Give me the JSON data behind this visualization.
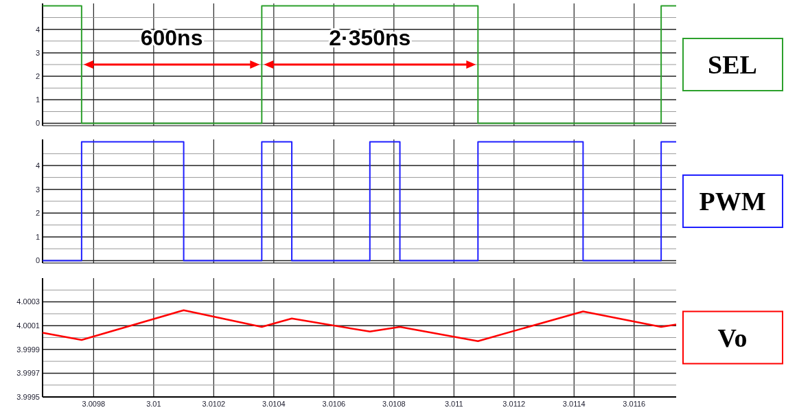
{
  "chart_data": [
    {
      "type": "step",
      "xlim": [
        3.00963,
        3.01174
      ],
      "xticks": [
        3.0098,
        3.01,
        3.0102,
        3.0104,
        3.0106,
        3.0108,
        3.011,
        3.0112,
        3.0114,
        3.0116
      ],
      "ylim": [
        -0.1,
        5.1
      ],
      "yticks": [
        0,
        {
          "value": 0.5,
          "label": null
        },
        1,
        {
          "value": 1.5,
          "label": null
        },
        2,
        {
          "value": 2.5,
          "label": null
        },
        3,
        {
          "value": 3.5,
          "label": null
        },
        4,
        {
          "value": 4.5,
          "label": null
        }
      ],
      "tick_labels": "y",
      "grid": true,
      "legend": "right",
      "series": [
        {
          "name": "SEL",
          "color": "#2ca02c",
          "x": [
            3.00963,
            3.00976,
            3.01036,
            3.01108,
            3.01169,
            3.01174
          ],
          "values": [
            5,
            0,
            5,
            0,
            5,
            5
          ]
        }
      ],
      "annotations": [
        "600ns",
        "2·350ns"
      ]
    },
    {
      "type": "step",
      "xlim": [
        3.00963,
        3.01174
      ],
      "xticks": [
        3.0098,
        3.01,
        3.0102,
        3.0104,
        3.0106,
        3.0108,
        3.011,
        3.0112,
        3.0114,
        3.0116
      ],
      "ylim": [
        -0.1,
        5.1
      ],
      "yticks": [
        0,
        {
          "value": 0.5,
          "label": null
        },
        1,
        {
          "value": 1.5,
          "label": null
        },
        2,
        {
          "value": 2.5,
          "label": null
        },
        3,
        {
          "value": 3.5,
          "label": null
        },
        4,
        {
          "value": 4.5,
          "label": null
        }
      ],
      "tick_labels": "y",
      "grid": true,
      "legend": "right",
      "series": [
        {
          "name": "PWM",
          "color": "#1f1fff",
          "x": [
            3.00963,
            3.00976,
            3.0101,
            3.01036,
            3.01046,
            3.01072,
            3.01082,
            3.01108,
            3.01143,
            3.01169,
            3.01174
          ],
          "values": [
            0,
            5,
            0,
            5,
            0,
            5,
            0,
            5,
            0,
            5,
            5
          ]
        }
      ]
    },
    {
      "type": "line",
      "xlim": [
        3.00963,
        3.01174
      ],
      "xticks": [
        3.0098,
        3.01,
        3.0102,
        3.0104,
        3.0106,
        3.0108,
        3.011,
        3.0112,
        3.0114,
        3.0116
      ],
      "ylim": [
        3.9995,
        4.0005
      ],
      "yticks": [
        3.9995,
        {
          "value": 3.9996,
          "label": null
        },
        3.9997,
        {
          "value": 3.9998,
          "label": null
        },
        3.9999,
        {
          "value": 4.0,
          "label": null
        },
        4.0001,
        {
          "value": 4.0002,
          "label": null
        },
        4.0003,
        {
          "value": 4.0004,
          "label": null
        }
      ],
      "grid": true,
      "legend": "right",
      "series": [
        {
          "name": "Vo",
          "color": "#ff0000",
          "x": [
            3.00963,
            3.00976,
            3.0101,
            3.01036,
            3.01046,
            3.01072,
            3.01082,
            3.01108,
            3.01143,
            3.01169,
            3.01174
          ],
          "values": [
            4.00004,
            3.99998,
            4.00023,
            4.00009,
            4.00016,
            4.00005,
            4.00009,
            3.99997,
            4.00022,
            4.00009,
            4.00011
          ]
        }
      ]
    }
  ]
}
